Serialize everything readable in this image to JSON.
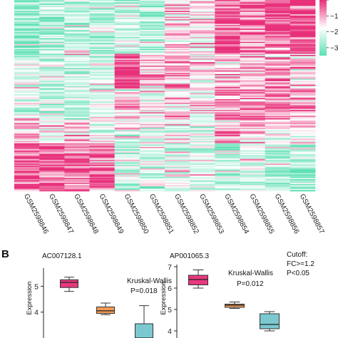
{
  "chart_data": [
    {
      "type": "heatmap",
      "panel_label": "",
      "samples": [
        "GSM2598846",
        "GSM2598847",
        "GSM2598848",
        "GSM2598849",
        "GSM2598850",
        "GSM2598851",
        "GSM2598852",
        "GSM2598853",
        "GSM2598854",
        "GSM2598855",
        "GSM2598856",
        "GSM2598857"
      ],
      "legend_ticks": [
        "0",
        "-1",
        "-2",
        "-3"
      ],
      "legend_ticks_shown": [
        "",
        "−1",
        "−2",
        "−3"
      ],
      "value_range": [
        -3.5,
        0
      ],
      "colors": {
        "high": "#e8307a",
        "mid": "#ffffff",
        "low": "#5fe0b4"
      },
      "row_blocks": [
        {
          "rows": 45,
          "profile": [
            -2.8,
            -2.6,
            -2.5,
            -2.7,
            -2.2,
            -2.4,
            -1.2,
            -1.6,
            -0.4,
            -0.5,
            -0.3,
            -0.2
          ]
        },
        {
          "rows": 30,
          "profile": [
            -2.2,
            -2.3,
            -2.2,
            -2.3,
            -0.3,
            -1.2,
            -0.9,
            -1.4,
            -1.3,
            -1.0,
            -0.9,
            -1.3
          ]
        },
        {
          "rows": 25,
          "profile": [
            -1.8,
            -2.2,
            -2.4,
            -2.0,
            -1.6,
            -1.8,
            -1.3,
            -1.6,
            -0.8,
            -0.7,
            -1.0,
            -1.0
          ]
        },
        {
          "rows": 20,
          "profile": [
            -1.2,
            -1.4,
            -1.2,
            -1.5,
            -2.0,
            -2.0,
            -1.8,
            -2.0,
            -1.2,
            -1.0,
            -1.3,
            -1.5
          ]
        },
        {
          "rows": 40,
          "profile": [
            -0.5,
            -0.6,
            -0.4,
            -0.5,
            -2.4,
            -2.2,
            -2.0,
            -2.1,
            -2.5,
            -2.4,
            -2.5,
            -2.6
          ]
        }
      ]
    },
    {
      "type": "box",
      "panel_label": "B",
      "title": "AC007128.1",
      "ylabel": "Expression",
      "ylim": [
        3.0,
        5.7
      ],
      "yticks": [
        4,
        5
      ],
      "test": "Kruskal-Wallis",
      "p_value": "P=0.018",
      "groups": [
        {
          "color": "#e8387f",
          "min": 4.8,
          "q1": 4.95,
          "median": 5.15,
          "q3": 5.25,
          "max": 5.35
        },
        {
          "color": "#f39a55",
          "min": 3.9,
          "q1": 3.95,
          "median": 4.05,
          "q3": 4.2,
          "max": 4.35
        },
        {
          "color": "#7bc8d0",
          "min": 3.0,
          "q1": 3.0,
          "median": 3.0,
          "q3": 3.55,
          "max": 4.25
        }
      ]
    },
    {
      "type": "box",
      "panel_label": "",
      "title": "AP001065.3",
      "ylabel": "Expression",
      "ylim": [
        3.9,
        7.1
      ],
      "yticks": [
        4,
        5,
        6,
        7
      ],
      "test": "Kruskal-Wallis",
      "p_value": "P=0.012",
      "groups": [
        {
          "color": "#e8387f",
          "min": 6.0,
          "q1": 6.15,
          "median": 6.4,
          "q3": 6.6,
          "max": 6.85
        },
        {
          "color": "#f39a55",
          "min": 5.05,
          "q1": 5.1,
          "median": 5.2,
          "q3": 5.25,
          "max": 5.35
        },
        {
          "color": "#7bc8d0",
          "min": 4.0,
          "q1": 4.1,
          "median": 4.3,
          "q3": 4.8,
          "max": 4.9
        }
      ]
    }
  ],
  "cutoff": {
    "title": "Cutoff:",
    "fc": "FC>=1.2",
    "p": "P<0.05"
  }
}
